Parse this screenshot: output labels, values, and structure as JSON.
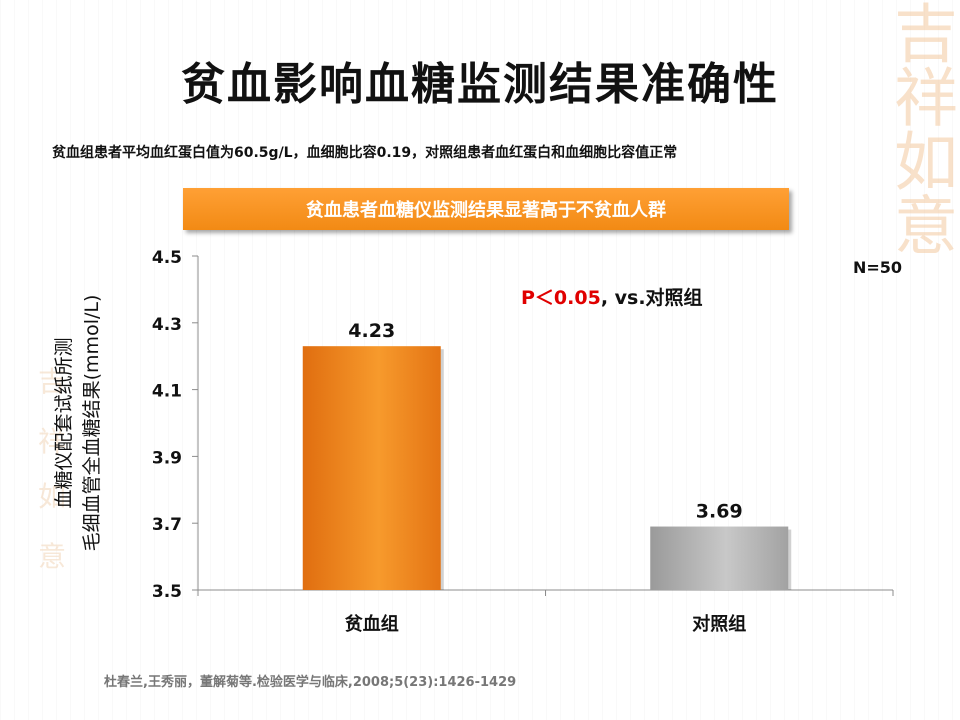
{
  "title": "贫血影响血糖监测结果准确性",
  "subtitle": "贫血组患者平均血红蛋白值为60.5g/L，血细胞比容0.19，对照组患者血红蛋白和血细胞比容值正常",
  "banner": "贫血患者血糖仪监测结果显著高于不贫血人群",
  "citation": "杜春兰,王秀丽，董解菊等.检验医学与临床,2008;5(23):1426-1429",
  "watermark": "吉祥如意",
  "colors": {
    "anemia_bar": "#f28a1e",
    "control_bar": "#b4b4b4",
    "banner": "#f7941d",
    "pvalue_red": "#e00000"
  },
  "chart_data": {
    "type": "bar",
    "categories": [
      "贫血组",
      "对照组"
    ],
    "values": [
      4.23,
      3.69
    ],
    "data_labels": [
      "4.23",
      "3.69"
    ],
    "ylabel_lines": [
      "血糖仪配套试纸所测",
      "毛细血管全血糖结果(mmol/L)"
    ],
    "ylim": [
      3.5,
      4.5
    ],
    "yticks": [
      "3.5",
      "3.7",
      "3.9",
      "4.1",
      "4.3",
      "4.5"
    ],
    "annotations": {
      "n": "N=50",
      "p_value": "P＜0.05",
      "comparison": ", vs.对照组"
    },
    "grid": false
  }
}
